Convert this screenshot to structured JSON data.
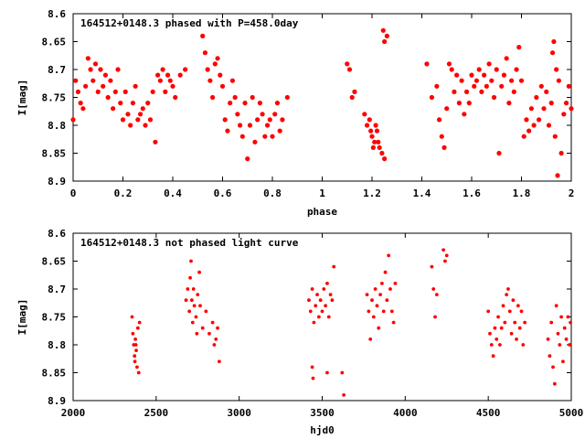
{
  "chart_data": [
    {
      "type": "scatter",
      "title": "164512+0148.3 phased with P=458.0day",
      "xlabel": "phase",
      "ylabel": "I[mag]",
      "xlim": [
        0,
        2
      ],
      "ylim": [
        8.9,
        8.6
      ],
      "y_inverted": true,
      "xticks": [
        "0",
        "0.2",
        "0.4",
        "0.6",
        "0.8",
        "1",
        "1.2",
        "1.4",
        "1.6",
        "1.8",
        "2"
      ],
      "yticks": [
        "8.6",
        "8.65",
        "8.7",
        "8.75",
        "8.8",
        "8.85",
        "8.9"
      ],
      "marker_color": "#ff0000",
      "points": [
        [
          0.0,
          8.79
        ],
        [
          0.01,
          8.72
        ],
        [
          0.02,
          8.74
        ],
        [
          0.03,
          8.76
        ],
        [
          0.04,
          8.77
        ],
        [
          0.05,
          8.73
        ],
        [
          0.06,
          8.68
        ],
        [
          0.07,
          8.7
        ],
        [
          0.08,
          8.72
        ],
        [
          0.09,
          8.69
        ],
        [
          0.1,
          8.74
        ],
        [
          0.11,
          8.7
        ],
        [
          0.12,
          8.73
        ],
        [
          0.13,
          8.71
        ],
        [
          0.14,
          8.75
        ],
        [
          0.15,
          8.72
        ],
        [
          0.16,
          8.77
        ],
        [
          0.17,
          8.74
        ],
        [
          0.18,
          8.7
        ],
        [
          0.19,
          8.76
        ],
        [
          0.2,
          8.79
        ],
        [
          0.21,
          8.74
        ],
        [
          0.22,
          8.78
        ],
        [
          0.23,
          8.8
        ],
        [
          0.24,
          8.76
        ],
        [
          0.25,
          8.73
        ],
        [
          0.26,
          8.79
        ],
        [
          0.27,
          8.78
        ],
        [
          0.28,
          8.77
        ],
        [
          0.29,
          8.8
        ],
        [
          0.3,
          8.76
        ],
        [
          0.31,
          8.79
        ],
        [
          0.32,
          8.74
        ],
        [
          0.33,
          8.83
        ],
        [
          0.34,
          8.71
        ],
        [
          0.35,
          8.72
        ],
        [
          0.36,
          8.7
        ],
        [
          0.37,
          8.74
        ],
        [
          0.38,
          8.71
        ],
        [
          0.39,
          8.72
        ],
        [
          0.4,
          8.73
        ],
        [
          0.41,
          8.75
        ],
        [
          0.43,
          8.71
        ],
        [
          0.45,
          8.7
        ],
        [
          0.52,
          8.64
        ],
        [
          0.53,
          8.67
        ],
        [
          0.54,
          8.7
        ],
        [
          0.55,
          8.72
        ],
        [
          0.56,
          8.75
        ],
        [
          0.57,
          8.69
        ],
        [
          0.58,
          8.68
        ],
        [
          0.59,
          8.71
        ],
        [
          0.6,
          8.73
        ],
        [
          0.61,
          8.79
        ],
        [
          0.62,
          8.81
        ],
        [
          0.63,
          8.76
        ],
        [
          0.64,
          8.72
        ],
        [
          0.65,
          8.75
        ],
        [
          0.66,
          8.78
        ],
        [
          0.67,
          8.8
        ],
        [
          0.68,
          8.82
        ],
        [
          0.69,
          8.76
        ],
        [
          0.7,
          8.86
        ],
        [
          0.71,
          8.8
        ],
        [
          0.72,
          8.75
        ],
        [
          0.73,
          8.83
        ],
        [
          0.74,
          8.79
        ],
        [
          0.75,
          8.76
        ],
        [
          0.76,
          8.78
        ],
        [
          0.77,
          8.82
        ],
        [
          0.78,
          8.8
        ],
        [
          0.79,
          8.79
        ],
        [
          0.8,
          8.82
        ],
        [
          0.81,
          8.78
        ],
        [
          0.82,
          8.76
        ],
        [
          0.83,
          8.81
        ],
        [
          0.84,
          8.79
        ],
        [
          0.86,
          8.75
        ],
        [
          1.1,
          8.69
        ],
        [
          1.11,
          8.7
        ],
        [
          1.12,
          8.75
        ],
        [
          1.13,
          8.74
        ],
        [
          1.17,
          8.78
        ],
        [
          1.18,
          8.8
        ],
        [
          1.19,
          8.79
        ],
        [
          1.2,
          8.82
        ],
        [
          1.21,
          8.83
        ],
        [
          1.22,
          8.81
        ],
        [
          1.23,
          8.84
        ],
        [
          1.24,
          8.85
        ],
        [
          1.25,
          8.86
        ],
        [
          1.245,
          8.63
        ],
        [
          1.25,
          8.65
        ],
        [
          1.26,
          8.64
        ],
        [
          1.195,
          8.81
        ],
        [
          1.215,
          8.8
        ],
        [
          1.225,
          8.83
        ],
        [
          1.205,
          8.84
        ],
        [
          1.42,
          8.69
        ],
        [
          1.44,
          8.75
        ],
        [
          1.46,
          8.73
        ],
        [
          1.47,
          8.79
        ],
        [
          1.48,
          8.82
        ],
        [
          1.49,
          8.84
        ],
        [
          1.5,
          8.77
        ],
        [
          1.51,
          8.69
        ],
        [
          1.52,
          8.7
        ],
        [
          1.53,
          8.74
        ],
        [
          1.54,
          8.71
        ],
        [
          1.55,
          8.76
        ],
        [
          1.56,
          8.72
        ],
        [
          1.57,
          8.78
        ],
        [
          1.58,
          8.74
        ],
        [
          1.59,
          8.76
        ],
        [
          1.6,
          8.71
        ],
        [
          1.61,
          8.73
        ],
        [
          1.62,
          8.72
        ],
        [
          1.63,
          8.7
        ],
        [
          1.64,
          8.74
        ],
        [
          1.65,
          8.71
        ],
        [
          1.66,
          8.73
        ],
        [
          1.67,
          8.69
        ],
        [
          1.68,
          8.72
        ],
        [
          1.69,
          8.75
        ],
        [
          1.7,
          8.7
        ],
        [
          1.71,
          8.85
        ],
        [
          1.72,
          8.73
        ],
        [
          1.73,
          8.71
        ],
        [
          1.74,
          8.68
        ],
        [
          1.75,
          8.76
        ],
        [
          1.76,
          8.72
        ],
        [
          1.77,
          8.74
        ],
        [
          1.78,
          8.7
        ],
        [
          1.79,
          8.66
        ],
        [
          1.8,
          8.72
        ],
        [
          1.81,
          8.82
        ],
        [
          1.82,
          8.79
        ],
        [
          1.83,
          8.81
        ],
        [
          1.84,
          8.77
        ],
        [
          1.85,
          8.8
        ],
        [
          1.86,
          8.75
        ],
        [
          1.87,
          8.79
        ],
        [
          1.88,
          8.73
        ],
        [
          1.89,
          8.77
        ],
        [
          1.9,
          8.74
        ],
        [
          1.91,
          8.8
        ],
        [
          1.92,
          8.76
        ],
        [
          1.93,
          8.65
        ],
        [
          1.94,
          8.7
        ],
        [
          1.945,
          8.89
        ],
        [
          1.95,
          8.72
        ],
        [
          1.96,
          8.85
        ],
        [
          1.97,
          8.78
        ],
        [
          1.98,
          8.76
        ],
        [
          1.99,
          8.73
        ],
        [
          2.0,
          8.77
        ],
        [
          1.925,
          8.67
        ],
        [
          1.935,
          8.82
        ]
      ]
    },
    {
      "type": "scatter",
      "title": "164512+0148.3 not phased light curve",
      "xlabel": "hjd0",
      "ylabel": "I[mag]",
      "xlim": [
        2000,
        5000
      ],
      "ylim": [
        8.9,
        8.6
      ],
      "y_inverted": true,
      "xticks": [
        "2000",
        "2500",
        "3000",
        "3500",
        "4000",
        "4500",
        "5000"
      ],
      "yticks": [
        "8.6",
        "8.65",
        "8.7",
        "8.75",
        "8.8",
        "8.85",
        "8.9"
      ],
      "marker_color": "#ff0000",
      "points": [
        [
          2355,
          8.75
        ],
        [
          2360,
          8.78
        ],
        [
          2365,
          8.8
        ],
        [
          2370,
          8.82
        ],
        [
          2375,
          8.79
        ],
        [
          2380,
          8.81
        ],
        [
          2385,
          8.84
        ],
        [
          2390,
          8.77
        ],
        [
          2395,
          8.85
        ],
        [
          2400,
          8.76
        ],
        [
          2372,
          8.83
        ],
        [
          2378,
          8.8
        ],
        [
          2680,
          8.72
        ],
        [
          2690,
          8.7
        ],
        [
          2700,
          8.74
        ],
        [
          2705,
          8.68
        ],
        [
          2710,
          8.65
        ],
        [
          2715,
          8.72
        ],
        [
          2720,
          8.76
        ],
        [
          2725,
          8.7
        ],
        [
          2730,
          8.73
        ],
        [
          2740,
          8.75
        ],
        [
          2745,
          8.78
        ],
        [
          2750,
          8.71
        ],
        [
          2760,
          8.67
        ],
        [
          2765,
          8.73
        ],
        [
          2780,
          8.77
        ],
        [
          2800,
          8.74
        ],
        [
          2820,
          8.78
        ],
        [
          2840,
          8.76
        ],
        [
          2850,
          8.8
        ],
        [
          2860,
          8.79
        ],
        [
          2870,
          8.77
        ],
        [
          2880,
          8.83
        ],
        [
          3420,
          8.72
        ],
        [
          3430,
          8.74
        ],
        [
          3440,
          8.7
        ],
        [
          3450,
          8.76
        ],
        [
          3460,
          8.73
        ],
        [
          3470,
          8.71
        ],
        [
          3480,
          8.75
        ],
        [
          3490,
          8.72
        ],
        [
          3500,
          8.74
        ],
        [
          3510,
          8.7
        ],
        [
          3520,
          8.73
        ],
        [
          3530,
          8.69
        ],
        [
          3540,
          8.75
        ],
        [
          3550,
          8.71
        ],
        [
          3560,
          8.72
        ],
        [
          3570,
          8.66
        ],
        [
          3440,
          8.84
        ],
        [
          3445,
          8.86
        ],
        [
          3530,
          8.85
        ],
        [
          3620,
          8.85
        ],
        [
          3630,
          8.89
        ],
        [
          3770,
          8.71
        ],
        [
          3780,
          8.74
        ],
        [
          3790,
          8.79
        ],
        [
          3800,
          8.72
        ],
        [
          3810,
          8.75
        ],
        [
          3820,
          8.7
        ],
        [
          3830,
          8.73
        ],
        [
          3840,
          8.77
        ],
        [
          3850,
          8.71
        ],
        [
          3860,
          8.69
        ],
        [
          3870,
          8.74
        ],
        [
          3880,
          8.67
        ],
        [
          3890,
          8.72
        ],
        [
          3900,
          8.64
        ],
        [
          3910,
          8.7
        ],
        [
          3920,
          8.74
        ],
        [
          3930,
          8.76
        ],
        [
          3940,
          8.69
        ],
        [
          4160,
          8.66
        ],
        [
          4170,
          8.7
        ],
        [
          4180,
          8.75
        ],
        [
          4190,
          8.71
        ],
        [
          4230,
          8.63
        ],
        [
          4240,
          8.65
        ],
        [
          4250,
          8.64
        ],
        [
          4500,
          8.74
        ],
        [
          4510,
          8.78
        ],
        [
          4520,
          8.8
        ],
        [
          4530,
          8.82
        ],
        [
          4540,
          8.77
        ],
        [
          4550,
          8.79
        ],
        [
          4560,
          8.75
        ],
        [
          4570,
          8.8
        ],
        [
          4580,
          8.77
        ],
        [
          4590,
          8.73
        ],
        [
          4600,
          8.76
        ],
        [
          4610,
          8.71
        ],
        [
          4620,
          8.7
        ],
        [
          4630,
          8.74
        ],
        [
          4640,
          8.78
        ],
        [
          4650,
          8.72
        ],
        [
          4660,
          8.76
        ],
        [
          4670,
          8.79
        ],
        [
          4680,
          8.73
        ],
        [
          4690,
          8.77
        ],
        [
          4700,
          8.74
        ],
        [
          4710,
          8.8
        ],
        [
          4720,
          8.76
        ],
        [
          4860,
          8.79
        ],
        [
          4870,
          8.82
        ],
        [
          4880,
          8.76
        ],
        [
          4890,
          8.84
        ],
        [
          4900,
          8.87
        ],
        [
          4910,
          8.73
        ],
        [
          4920,
          8.78
        ],
        [
          4930,
          8.8
        ],
        [
          4940,
          8.75
        ],
        [
          4950,
          8.83
        ],
        [
          4960,
          8.77
        ],
        [
          4970,
          8.79
        ],
        [
          4980,
          8.75
        ],
        [
          4990,
          8.8
        ],
        [
          4995,
          8.76
        ]
      ]
    }
  ]
}
